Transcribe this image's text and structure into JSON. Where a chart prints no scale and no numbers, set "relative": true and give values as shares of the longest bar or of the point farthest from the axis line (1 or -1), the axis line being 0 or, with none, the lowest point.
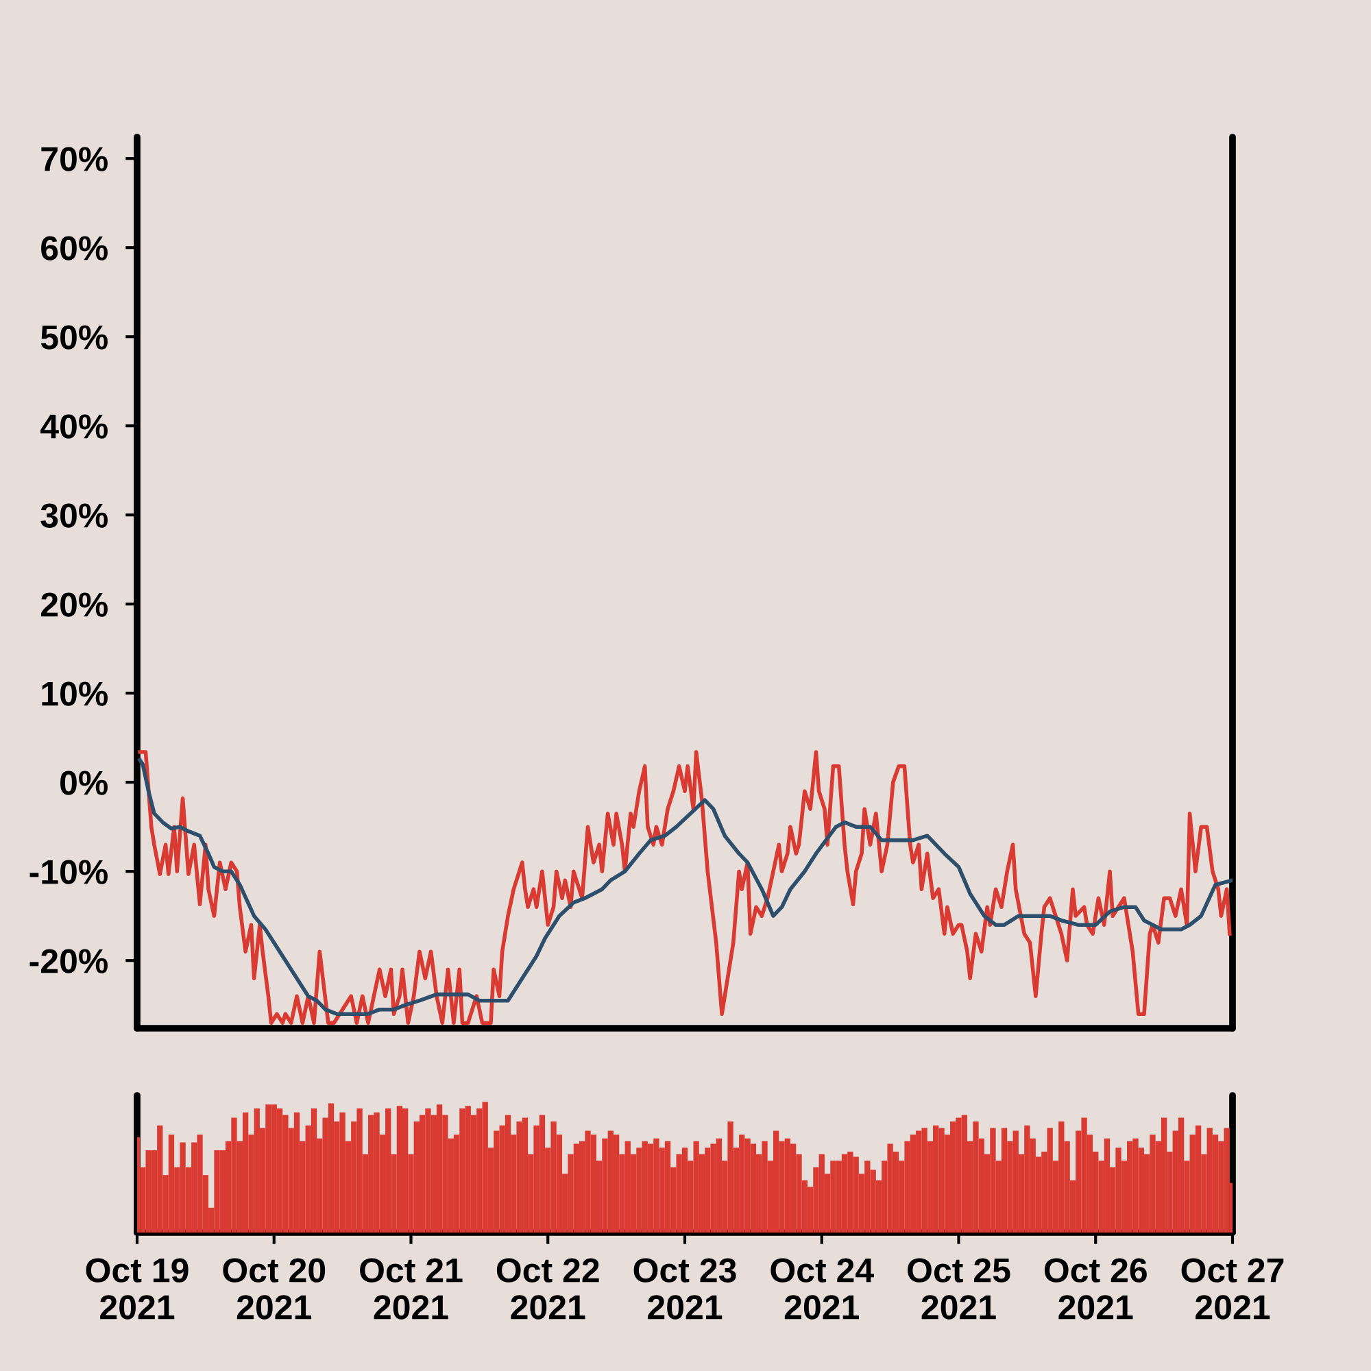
{
  "chart_data": [
    {
      "type": "line",
      "xlim": [
        "2021-10-19T00:00",
        "2021-10-27T00:00"
      ],
      "ylim": [
        -27.6,
        72.4
      ],
      "yticks": [
        {
          "value": -20,
          "label": "-20%"
        },
        {
          "value": -10,
          "label": "-10%"
        },
        {
          "value": 0,
          "label": "0%"
        },
        {
          "value": 10,
          "label": "10%"
        },
        {
          "value": 20,
          "label": "20%"
        },
        {
          "value": 30,
          "label": "30%"
        },
        {
          "value": 40,
          "label": "40%"
        },
        {
          "value": 50,
          "label": "50%"
        },
        {
          "value": 60,
          "label": "60%"
        },
        {
          "value": 70,
          "label": "70%"
        }
      ],
      "tick_labels": "y",
      "grid": false,
      "marker": "none",
      "line_style": "solid",
      "series": [
        {
          "color": "#d93a32",
          "x": [
            "2021-10-19T00:30",
            "2021-10-19T01:30",
            "2021-10-19T02:30",
            "2021-10-19T03:00",
            "2021-10-19T04:00",
            "2021-10-19T05:00",
            "2021-10-19T05:30",
            "2021-10-19T06:30",
            "2021-10-19T07:00",
            "2021-10-19T08:00",
            "2021-10-19T09:00",
            "2021-10-19T10:00",
            "2021-10-19T11:00",
            "2021-10-19T12:00",
            "2021-10-19T12:30",
            "2021-10-19T13:30",
            "2021-10-19T14:30",
            "2021-10-19T15:30",
            "2021-10-19T16:30",
            "2021-10-19T17:30",
            "2021-10-19T18:00",
            "2021-10-19T19:00",
            "2021-10-19T20:00",
            "2021-10-19T20:30",
            "2021-10-19T21:30",
            "2021-10-19T22:00",
            "2021-10-19T23:00",
            "2021-10-19T23:30",
            "2021-10-20T00:30",
            "2021-10-20T01:30",
            "2021-10-20T02:00",
            "2021-10-20T03:00",
            "2021-10-20T04:00",
            "2021-10-20T05:00",
            "2021-10-20T06:00",
            "2021-10-20T07:00",
            "2021-10-20T08:00",
            "2021-10-20T09:30",
            "2021-10-20T10:30",
            "2021-10-20T11:30",
            "2021-10-20T13:30",
            "2021-10-20T14:30",
            "2021-10-20T15:30",
            "2021-10-20T16:30",
            "2021-10-20T17:30",
            "2021-10-20T18:30",
            "2021-10-20T19:30",
            "2021-10-20T20:30",
            "2021-10-20T21:00",
            "2021-10-20T22:00",
            "2021-10-20T22:30",
            "2021-10-20T23:30",
            "2021-10-21T00:30",
            "2021-10-21T01:30",
            "2021-10-21T02:30",
            "2021-10-21T03:30",
            "2021-10-21T04:30",
            "2021-10-21T05:30",
            "2021-10-21T06:30",
            "2021-10-21T07:30",
            "2021-10-21T08:30",
            "2021-10-21T09:00",
            "2021-10-21T10:00",
            "2021-10-21T11:30",
            "2021-10-21T12:30",
            "2021-10-21T14:00",
            "2021-10-21T14:30",
            "2021-10-21T15:30",
            "2021-10-21T16:00",
            "2021-10-21T17:00",
            "2021-10-21T18:00",
            "2021-10-21T18:30",
            "2021-10-21T19:30",
            "2021-10-21T20:00",
            "2021-10-21T20:30",
            "2021-10-21T21:30",
            "2021-10-21T22:00",
            "2021-10-21T23:00",
            "2021-10-22T00:00",
            "2021-10-22T01:00",
            "2021-10-22T01:30",
            "2021-10-22T02:30",
            "2021-10-22T03:00",
            "2021-10-22T04:00",
            "2021-10-22T04:30",
            "2021-10-22T05:30",
            "2021-10-22T06:00",
            "2021-10-22T07:00",
            "2021-10-22T08:00",
            "2021-10-22T09:00",
            "2021-10-22T09:30",
            "2021-10-22T10:30",
            "2021-10-22T11:30",
            "2021-10-22T12:00",
            "2021-10-22T13:00",
            "2021-10-22T13:30",
            "2021-10-22T14:30",
            "2021-10-22T15:00",
            "2021-10-22T16:00",
            "2021-10-22T17:00",
            "2021-10-22T17:30",
            "2021-10-22T18:30",
            "2021-10-22T19:00",
            "2021-10-22T20:00",
            "2021-10-22T21:00",
            "2021-10-22T22:00",
            "2021-10-22T23:00",
            "2021-10-23T00:00",
            "2021-10-23T00:30",
            "2021-10-23T01:30",
            "2021-10-23T02:00",
            "2021-10-23T03:00",
            "2021-10-23T04:00",
            "2021-10-23T05:30",
            "2021-10-23T06:30",
            "2021-10-23T07:30",
            "2021-10-23T08:30",
            "2021-10-23T09:30",
            "2021-10-23T10:00",
            "2021-10-23T11:00",
            "2021-10-23T11:30",
            "2021-10-23T12:30",
            "2021-10-23T13:30",
            "2021-10-23T14:30",
            "2021-10-23T15:30",
            "2021-10-23T16:30",
            "2021-10-23T17:00",
            "2021-10-23T18:00",
            "2021-10-23T18:30",
            "2021-10-23T19:30",
            "2021-10-23T20:00",
            "2021-10-23T21:00",
            "2021-10-23T22:00",
            "2021-10-23T23:00",
            "2021-10-23T23:30",
            "2021-10-24T00:30",
            "2021-10-24T01:00",
            "2021-10-24T02:00",
            "2021-10-24T03:00",
            "2021-10-24T04:00",
            "2021-10-24T04:30",
            "2021-10-24T05:30",
            "2021-10-24T06:00",
            "2021-10-24T07:00",
            "2021-10-24T07:30",
            "2021-10-24T08:30",
            "2021-10-24T09:30",
            "2021-10-24T10:30",
            "2021-10-24T11:30",
            "2021-10-24T12:30",
            "2021-10-24T13:30",
            "2021-10-24T14:30",
            "2021-10-24T15:30",
            "2021-10-24T16:00",
            "2021-10-24T17:00",
            "2021-10-24T17:30",
            "2021-10-24T18:30",
            "2021-10-24T19:30",
            "2021-10-24T20:30",
            "2021-10-24T21:30",
            "2021-10-24T22:00",
            "2021-10-24T23:00",
            "2021-10-25T00:00",
            "2021-10-25T00:30",
            "2021-10-25T01:30",
            "2021-10-25T02:00",
            "2021-10-25T03:00",
            "2021-10-25T04:00",
            "2021-10-25T05:00",
            "2021-10-25T05:30",
            "2021-10-25T06:30",
            "2021-10-25T07:30",
            "2021-10-25T08:30",
            "2021-10-25T09:30",
            "2021-10-25T10:00",
            "2021-10-25T11:30",
            "2021-10-25T12:30",
            "2021-10-25T13:30",
            "2021-10-25T14:30",
            "2021-10-25T15:00",
            "2021-10-25T16:00",
            "2021-10-25T17:00",
            "2021-10-25T18:00",
            "2021-10-25T19:00",
            "2021-10-25T20:00",
            "2021-10-25T20:30",
            "2021-10-25T22:00",
            "2021-10-25T22:30",
            "2021-10-25T23:30",
            "2021-10-26T00:30",
            "2021-10-26T01:30",
            "2021-10-26T02:30",
            "2021-10-26T03:00",
            "2021-10-26T04:00",
            "2021-10-26T05:00",
            "2021-10-26T06:30",
            "2021-10-26T07:30",
            "2021-10-26T08:30",
            "2021-10-26T09:30",
            "2021-10-26T10:00",
            "2021-10-26T11:00",
            "2021-10-26T12:00",
            "2021-10-26T13:00",
            "2021-10-26T14:00",
            "2021-10-26T15:00",
            "2021-10-26T16:00",
            "2021-10-26T16:30",
            "2021-10-26T17:30",
            "2021-10-26T18:30",
            "2021-10-26T19:30",
            "2021-10-26T20:30",
            "2021-10-26T21:30",
            "2021-10-26T22:00",
            "2021-10-26T23:00",
            "2021-10-26T23:30"
          ],
          "values": [
            3.4,
            3.4,
            -5,
            -7,
            -10.3,
            -7,
            -10.3,
            -5,
            -10,
            -1.8,
            -10.3,
            -7,
            -13.7,
            -7,
            -12,
            -15,
            -9,
            -12,
            -9,
            -10,
            -14,
            -19,
            -16,
            -22,
            -16,
            -19,
            -24,
            -27,
            -26,
            -27,
            -26,
            -27,
            -24,
            -27,
            -24,
            -27,
            -19,
            -27,
            -27,
            -26,
            -24,
            -27,
            -24,
            -27,
            -24,
            -21,
            -24,
            -21,
            -26,
            -24,
            -21,
            -27,
            -24,
            -19,
            -22,
            -19,
            -24,
            -27,
            -21,
            -27,
            -21,
            -27,
            -27,
            -24,
            -27,
            -27,
            -21,
            -24,
            -19,
            -15,
            -12,
            -11,
            -9,
            -12,
            -14,
            -12,
            -14,
            -10,
            -16,
            -14,
            -10,
            -13,
            -11,
            -14,
            -10,
            -12,
            -13,
            -5,
            -9,
            -7,
            -10,
            -3.5,
            -7,
            -3.5,
            -7,
            -10,
            -3.5,
            -5,
            -1,
            1.8,
            -5,
            -7,
            -5,
            -7,
            -3,
            -1,
            1.8,
            -1,
            1.8,
            -3,
            3.4,
            -2,
            -10,
            -18,
            -26,
            -22,
            -18,
            -10,
            -12,
            -9,
            -17,
            -14,
            -15,
            -13,
            -10,
            -7,
            -10,
            -8,
            -5,
            -8,
            -7,
            -1,
            -3,
            3.4,
            -1,
            -3,
            -7,
            1.8,
            1.8,
            -7,
            -10,
            -13.7,
            -10,
            -8,
            -3,
            -7,
            -3.5,
            -10,
            -7,
            0,
            1.8,
            1.8,
            -7,
            -9,
            -7,
            -12,
            -8,
            -13,
            -12,
            -17,
            -14,
            -17,
            -16,
            -16,
            -19,
            -22,
            -17,
            -19,
            -14,
            -16,
            -12,
            -14,
            -10,
            -7,
            -12,
            -17,
            -18,
            -24,
            -17,
            -14,
            -13,
            -15,
            -17,
            -20,
            -12,
            -15,
            -14,
            -16,
            -17,
            -13,
            -16,
            -10,
            -15,
            -14,
            -13,
            -19,
            -26,
            -26,
            -17,
            -16,
            -18,
            -13,
            -13,
            -15,
            -12,
            -16,
            -3.5,
            -10,
            -5,
            -5,
            -10,
            -12,
            -15,
            -12,
            -17
          ]
        },
        {
          "color": "#2d4f6b",
          "x": [
            "2021-10-19T00:30",
            "2021-10-19T01:00",
            "2021-10-19T02:00",
            "2021-10-19T03:00",
            "2021-10-19T04:30",
            "2021-10-19T06:00",
            "2021-10-19T07:30",
            "2021-10-19T09:00",
            "2021-10-19T11:00",
            "2021-10-19T12:30",
            "2021-10-19T13:30",
            "2021-10-19T15:00",
            "2021-10-19T16:30",
            "2021-10-19T18:00",
            "2021-10-19T20:30",
            "2021-10-19T22:30",
            "2021-10-20T01:00",
            "2021-10-20T04:00",
            "2021-10-20T06:00",
            "2021-10-20T07:30",
            "2021-10-20T09:00",
            "2021-10-20T11:00",
            "2021-10-20T13:30",
            "2021-10-20T16:30",
            "2021-10-20T18:30",
            "2021-10-20T21:00",
            "2021-10-20T23:00",
            "2021-10-21T01:30",
            "2021-10-21T04:30",
            "2021-10-21T07:30",
            "2021-10-21T10:00",
            "2021-10-21T12:00",
            "2021-10-21T14:00",
            "2021-10-21T17:00",
            "2021-10-21T19:00",
            "2021-10-21T20:30",
            "2021-10-21T22:00",
            "2021-10-21T23:30",
            "2021-10-22T02:00",
            "2021-10-22T04:30",
            "2021-10-22T06:30",
            "2021-10-22T09:30",
            "2021-10-22T11:00",
            "2021-10-22T13:30",
            "2021-10-22T16:00",
            "2021-10-22T18:00",
            "2021-10-22T20:30",
            "2021-10-22T22:30",
            "2021-10-23T01:00",
            "2021-10-23T03:30",
            "2021-10-23T05:00",
            "2021-10-23T07:00",
            "2021-10-23T09:30",
            "2021-10-23T11:00",
            "2021-10-23T13:30",
            "2021-10-23T15:30",
            "2021-10-23T17:00",
            "2021-10-23T18:30",
            "2021-10-23T21:00",
            "2021-10-23T23:00",
            "2021-10-24T02:30",
            "2021-10-24T04:00",
            "2021-10-24T06:00",
            "2021-10-24T08:30",
            "2021-10-24T10:30",
            "2021-10-24T14:00",
            "2021-10-24T16:00",
            "2021-10-24T18:30",
            "2021-10-24T20:00",
            "2021-10-24T21:30",
            "2021-10-25T00:00",
            "2021-10-25T02:00",
            "2021-10-25T04:30",
            "2021-10-25T06:30",
            "2021-10-25T08:00",
            "2021-10-25T10:30",
            "2021-10-25T13:00",
            "2021-10-25T16:00",
            "2021-10-25T18:00",
            "2021-10-25T21:00",
            "2021-10-26T00:00",
            "2021-10-26T02:30",
            "2021-10-26T05:00",
            "2021-10-26T07:00",
            "2021-10-26T08:30",
            "2021-10-26T11:30",
            "2021-10-26T15:00",
            "2021-10-26T16:30",
            "2021-10-26T18:30",
            "2021-10-26T21:00",
            "2021-10-27T00:00"
          ],
          "values": [
            2.5,
            2,
            -1,
            -3.5,
            -4.5,
            -5.2,
            -5,
            -5.5,
            -6,
            -8,
            -9.5,
            -10,
            -10,
            -11.5,
            -15,
            -16.5,
            -19,
            -22,
            -24,
            -24.5,
            -25.5,
            -26,
            -26,
            -26,
            -25.5,
            -25.5,
            -25,
            -24.5,
            -23.8,
            -23.8,
            -23.8,
            -24.5,
            -24.5,
            -24.5,
            -22.5,
            -21,
            -19.5,
            -17.5,
            -15,
            -13.5,
            -13,
            -12,
            -11,
            -10,
            -8,
            -6.5,
            -6,
            -5,
            -3.5,
            -2,
            -3,
            -6,
            -8,
            -9,
            -12,
            -15,
            -14,
            -12,
            -10,
            -8,
            -5,
            -4.5,
            -5,
            -5,
            -6.5,
            -6.5,
            -6.5,
            -6,
            -7,
            -8,
            -9.5,
            -12.5,
            -15,
            -16,
            -16,
            -15,
            -15,
            -15,
            -15.5,
            -16,
            -16,
            -14.5,
            -14,
            -14,
            -15.5,
            -16.5,
            -16.5,
            -16,
            -15,
            -11.5,
            -11
          ]
        }
      ]
    },
    {
      "type": "bar",
      "relative": true,
      "xlim": [
        "2021-10-19T00:00",
        "2021-10-27T00:00"
      ],
      "xticks": [
        {
          "value": "2021-10-19",
          "label": "Oct 19\n2021"
        },
        {
          "value": "2021-10-20",
          "label": "Oct 20\n2021"
        },
        {
          "value": "2021-10-21",
          "label": "Oct 21\n2021"
        },
        {
          "value": "2021-10-22",
          "label": "Oct 22\n2021"
        },
        {
          "value": "2021-10-23",
          "label": "Oct 23\n2021"
        },
        {
          "value": "2021-10-24",
          "label": "Oct 24\n2021"
        },
        {
          "value": "2021-10-25",
          "label": "Oct 25\n2021"
        },
        {
          "value": "2021-10-26",
          "label": "Oct 26\n2021"
        },
        {
          "value": "2021-10-27",
          "label": "Oct 27\n2021"
        }
      ],
      "tick_labels": "x",
      "grid": false,
      "x": [
        "2021-10-19T00:00",
        "2021-10-19T01:00",
        "2021-10-19T02:00",
        "2021-10-19T03:00",
        "2021-10-19T04:00",
        "2021-10-19T05:00",
        "2021-10-19T06:00",
        "2021-10-19T07:00",
        "2021-10-19T08:00",
        "2021-10-19T09:00",
        "2021-10-19T10:00",
        "2021-10-19T11:00",
        "2021-10-19T12:00",
        "2021-10-19T13:00",
        "2021-10-19T14:00",
        "2021-10-19T15:00",
        "2021-10-19T16:00",
        "2021-10-19T17:00",
        "2021-10-19T18:00",
        "2021-10-19T19:00",
        "2021-10-19T20:00",
        "2021-10-19T21:00",
        "2021-10-19T22:00",
        "2021-10-19T23:00",
        "2021-10-20T00:00",
        "2021-10-20T01:00",
        "2021-10-20T02:00",
        "2021-10-20T03:00",
        "2021-10-20T04:00",
        "2021-10-20T05:00",
        "2021-10-20T06:00",
        "2021-10-20T07:00",
        "2021-10-20T08:00",
        "2021-10-20T09:00",
        "2021-10-20T10:00",
        "2021-10-20T11:00",
        "2021-10-20T12:00",
        "2021-10-20T13:00",
        "2021-10-20T14:00",
        "2021-10-20T15:00",
        "2021-10-20T16:00",
        "2021-10-20T17:00",
        "2021-10-20T18:00",
        "2021-10-20T19:00",
        "2021-10-20T20:00",
        "2021-10-20T21:00",
        "2021-10-20T22:00",
        "2021-10-20T23:00",
        "2021-10-21T00:00",
        "2021-10-21T01:00",
        "2021-10-21T02:00",
        "2021-10-21T03:00",
        "2021-10-21T04:00",
        "2021-10-21T05:00",
        "2021-10-21T06:00",
        "2021-10-21T07:00",
        "2021-10-21T08:00",
        "2021-10-21T09:00",
        "2021-10-21T10:00",
        "2021-10-21T11:00",
        "2021-10-21T12:00",
        "2021-10-21T13:00",
        "2021-10-21T14:00",
        "2021-10-21T15:00",
        "2021-10-21T16:00",
        "2021-10-21T17:00",
        "2021-10-21T18:00",
        "2021-10-21T19:00",
        "2021-10-21T20:00",
        "2021-10-21T21:00",
        "2021-10-21T22:00",
        "2021-10-21T23:00",
        "2021-10-22T00:00",
        "2021-10-22T01:00",
        "2021-10-22T02:00",
        "2021-10-22T03:00",
        "2021-10-22T04:00",
        "2021-10-22T05:00",
        "2021-10-22T06:00",
        "2021-10-22T07:00",
        "2021-10-22T08:00",
        "2021-10-22T09:00",
        "2021-10-22T10:00",
        "2021-10-22T11:00",
        "2021-10-22T12:00",
        "2021-10-22T13:00",
        "2021-10-22T14:00",
        "2021-10-22T15:00",
        "2021-10-22T16:00",
        "2021-10-22T17:00",
        "2021-10-22T18:00",
        "2021-10-22T19:00",
        "2021-10-22T20:00",
        "2021-10-22T21:00",
        "2021-10-22T22:00",
        "2021-10-22T23:00",
        "2021-10-23T00:00",
        "2021-10-23T01:00",
        "2021-10-23T02:00",
        "2021-10-23T03:00",
        "2021-10-23T04:00",
        "2021-10-23T05:00",
        "2021-10-23T06:00",
        "2021-10-23T07:00",
        "2021-10-23T08:00",
        "2021-10-23T09:00",
        "2021-10-23T10:00",
        "2021-10-23T11:00",
        "2021-10-23T12:00",
        "2021-10-23T13:00",
        "2021-10-23T14:00",
        "2021-10-23T15:00",
        "2021-10-23T16:00",
        "2021-10-23T17:00",
        "2021-10-23T18:00",
        "2021-10-23T19:00",
        "2021-10-23T20:00",
        "2021-10-23T21:00",
        "2021-10-23T22:00",
        "2021-10-23T23:00",
        "2021-10-24T00:00",
        "2021-10-24T01:00",
        "2021-10-24T02:00",
        "2021-10-24T03:00",
        "2021-10-24T04:00",
        "2021-10-24T05:00",
        "2021-10-24T06:00",
        "2021-10-24T07:00",
        "2021-10-24T08:00",
        "2021-10-24T09:00",
        "2021-10-24T10:00",
        "2021-10-24T11:00",
        "2021-10-24T12:00",
        "2021-10-24T13:00",
        "2021-10-24T14:00",
        "2021-10-24T15:00",
        "2021-10-24T16:00",
        "2021-10-24T17:00",
        "2021-10-24T18:00",
        "2021-10-24T19:00",
        "2021-10-24T20:00",
        "2021-10-24T21:00",
        "2021-10-24T22:00",
        "2021-10-24T23:00",
        "2021-10-25T00:00",
        "2021-10-25T01:00",
        "2021-10-25T02:00",
        "2021-10-25T03:00",
        "2021-10-25T04:00",
        "2021-10-25T05:00",
        "2021-10-25T06:00",
        "2021-10-25T07:00",
        "2021-10-25T08:00",
        "2021-10-25T09:00",
        "2021-10-25T10:00",
        "2021-10-25T11:00",
        "2021-10-25T12:00",
        "2021-10-25T13:00",
        "2021-10-25T14:00",
        "2021-10-25T15:00",
        "2021-10-25T16:00",
        "2021-10-25T17:00",
        "2021-10-25T18:00",
        "2021-10-25T19:00",
        "2021-10-25T20:00",
        "2021-10-25T21:00",
        "2021-10-25T22:00",
        "2021-10-25T23:00",
        "2021-10-26T00:00",
        "2021-10-26T01:00",
        "2021-10-26T02:00",
        "2021-10-26T03:00",
        "2021-10-26T04:00",
        "2021-10-26T05:00",
        "2021-10-26T06:00",
        "2021-10-26T07:00",
        "2021-10-26T08:00",
        "2021-10-26T09:00",
        "2021-10-26T10:00",
        "2021-10-26T11:00",
        "2021-10-26T12:00",
        "2021-10-26T13:00",
        "2021-10-26T14:00",
        "2021-10-26T15:00",
        "2021-10-26T16:00",
        "2021-10-26T17:00",
        "2021-10-26T18:00",
        "2021-10-26T19:00",
        "2021-10-26T20:00",
        "2021-10-26T21:00",
        "2021-10-26T22:00",
        "2021-10-26T23:00",
        "2021-10-27T00:00"
      ],
      "color": "#d93a32",
      "values": [
        0.73,
        0.5,
        0.63,
        0.63,
        0.82,
        0.44,
        0.75,
        0.5,
        0.69,
        0.5,
        0.69,
        0.75,
        0.44,
        0.19,
        0.63,
        0.63,
        0.7,
        0.88,
        0.7,
        0.92,
        0.75,
        0.95,
        0.8,
        0.98,
        0.98,
        0.95,
        0.9,
        0.8,
        0.92,
        0.7,
        0.82,
        0.95,
        0.72,
        0.88,
        0.99,
        0.85,
        0.92,
        0.7,
        0.85,
        0.95,
        0.6,
        0.9,
        0.92,
        0.75,
        0.95,
        0.6,
        0.97,
        0.95,
        0.6,
        0.85,
        0.9,
        0.95,
        0.9,
        0.98,
        0.9,
        0.72,
        0.75,
        0.95,
        0.97,
        0.9,
        0.95,
        1,
        0.65,
        0.78,
        0.82,
        0.9,
        0.75,
        0.85,
        0.88,
        0.6,
        0.82,
        0.9,
        0.65,
        0.85,
        0.75,
        0.45,
        0.6,
        0.68,
        0.7,
        0.78,
        0.75,
        0.55,
        0.72,
        0.78,
        0.75,
        0.6,
        0.7,
        0.6,
        0.65,
        0.7,
        0.68,
        0.72,
        0.65,
        0.7,
        0.5,
        0.6,
        0.65,
        0.55,
        0.7,
        0.6,
        0.65,
        0.68,
        0.72,
        0.55,
        0.85,
        0.65,
        0.75,
        0.72,
        0.68,
        0.6,
        0.7,
        0.55,
        0.78,
        0.7,
        0.72,
        0.68,
        0.6,
        0.4,
        0.35,
        0.5,
        0.6,
        0.45,
        0.55,
        0.55,
        0.6,
        0.62,
        0.58,
        0.45,
        0.55,
        0.48,
        0.4,
        0.55,
        0.68,
        0.62,
        0.55,
        0.7,
        0.75,
        0.78,
        0.8,
        0.7,
        0.82,
        0.8,
        0.75,
        0.85,
        0.88,
        0.9,
        0.7,
        0.85,
        0.72,
        0.6,
        0.8,
        0.55,
        0.8,
        0.7,
        0.78,
        0.6,
        0.82,
        0.72,
        0.58,
        0.62,
        0.8,
        0.55,
        0.85,
        0.7,
        0.4,
        0.78,
        0.88,
        0.75,
        0.62,
        0.55,
        0.72,
        0.5,
        0.65,
        0.55,
        0.7,
        0.72,
        0.65,
        0.6,
        0.75,
        0.7,
        0.88,
        0.62,
        0.78,
        0.88,
        0.55,
        0.75,
        0.82,
        0.6,
        0.8,
        0.75,
        0.7,
        0.8,
        0.38
      ]
    }
  ]
}
